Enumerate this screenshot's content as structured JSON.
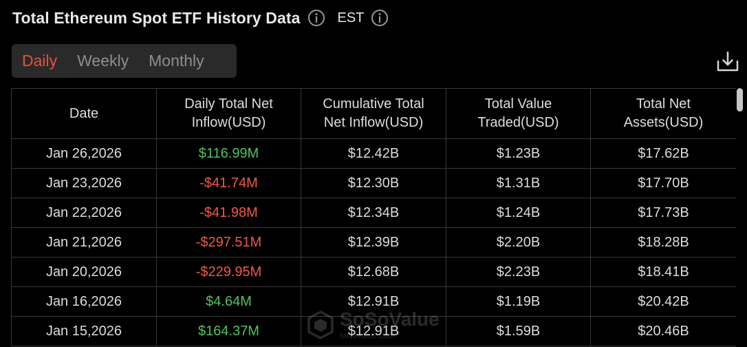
{
  "header": {
    "title": "Total Ethereum Spot ETF History Data",
    "timezone": "EST"
  },
  "tabs": [
    {
      "label": "Daily",
      "active": true
    },
    {
      "label": "Weekly",
      "active": false
    },
    {
      "label": "Monthly",
      "active": false
    }
  ],
  "table": {
    "columns": [
      "Date",
      "Daily Total Net Inflow(USD)",
      "Cumulative Total Net Inflow(USD)",
      "Total Value Traded(USD)",
      "Total Net Assets(USD)"
    ],
    "column_lines": [
      [
        "Date"
      ],
      [
        "Daily Total Net",
        "Inflow(USD)"
      ],
      [
        "Cumulative Total",
        "Net Inflow(USD)"
      ],
      [
        "Total Value",
        "Traded(USD)"
      ],
      [
        "Total Net",
        "Assets(USD)"
      ]
    ],
    "rows": [
      [
        "Jan 26,2026",
        "$116.99M",
        "$12.42B",
        "$1.23B",
        "$17.62B"
      ],
      [
        "Jan 23,2026",
        "-$41.74M",
        "$12.30B",
        "$1.31B",
        "$17.70B"
      ],
      [
        "Jan 22,2026",
        "-$41.98M",
        "$12.34B",
        "$1.24B",
        "$17.73B"
      ],
      [
        "Jan 21,2026",
        "-$297.51M",
        "$12.39B",
        "$2.20B",
        "$18.28B"
      ],
      [
        "Jan 20,2026",
        "-$229.95M",
        "$12.68B",
        "$2.23B",
        "$18.41B"
      ],
      [
        "Jan 16,2026",
        "$4.64M",
        "$12.91B",
        "$1.19B",
        "$20.42B"
      ],
      [
        "Jan 15,2026",
        "$164.37M",
        "$12.91B",
        "$1.59B",
        "$20.46B"
      ]
    ]
  },
  "watermark": {
    "name": "SoSoValue",
    "url": "sosovalue.com"
  },
  "colors": {
    "background": "#000000",
    "accent_active_tab": "#e5533a",
    "positive": "#4fc45f",
    "negative": "#ef5a45",
    "tab_bg": "#2a2a2a",
    "border": "#3a3a3a"
  },
  "icons": {
    "title_info": "info-icon",
    "timezone_info": "info-icon",
    "download": "download-icon"
  }
}
